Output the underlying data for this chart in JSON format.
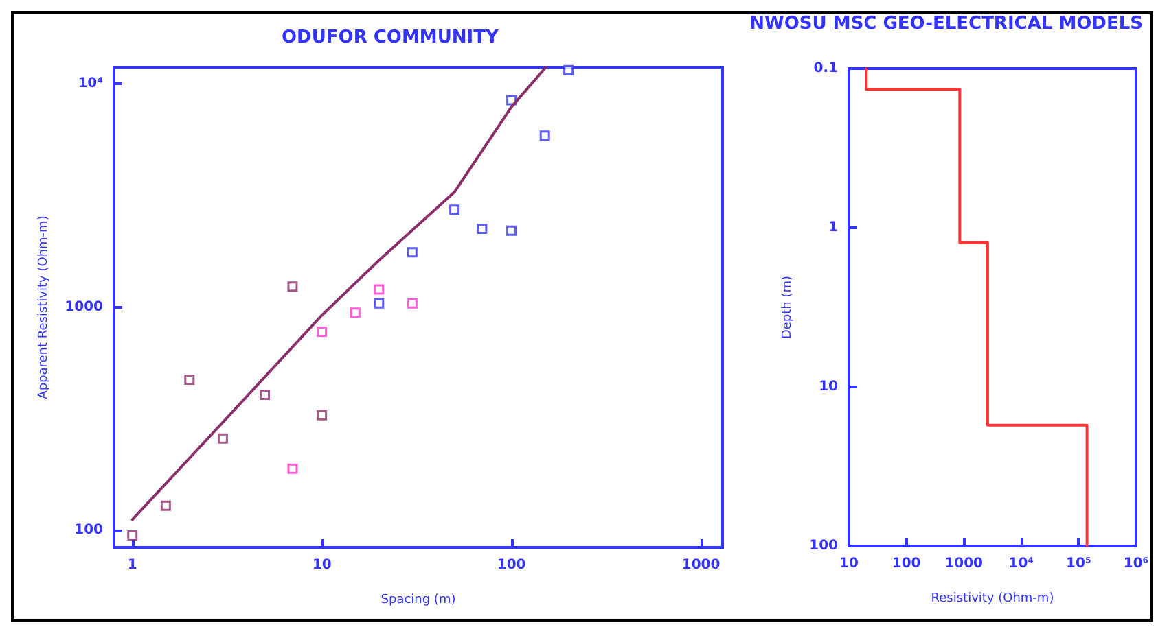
{
  "chart_data": [
    {
      "type": "scatter",
      "title": "ODUFOR COMMUNITY",
      "xlabel": "Spacing (m)",
      "ylabel": "Apparent Resistivity (Ohm-m)",
      "log": "xy",
      "marker": "square",
      "grid": false,
      "xlim": [
        0.8,
        1300
      ],
      "xticks": [
        1,
        10,
        100,
        1000
      ],
      "ylim": [
        84,
        11850
      ],
      "yticks": [
        100,
        1000,
        {
          "value": 10000,
          "label": "10⁴"
        }
      ],
      "series": [
        {
          "color": "#8b2f6b",
          "x": [
            1,
            1.5,
            2,
            3,
            5,
            7,
            10
          ],
          "values": [
            95,
            129,
            473,
            258,
            405,
            1236,
            328
          ]
        },
        {
          "color": "#ff33cc",
          "x": [
            7,
            10,
            15,
            20,
            30
          ],
          "values": [
            189,
            776,
            945,
            1200,
            1040
          ]
        },
        {
          "color": "#3333ff",
          "x": [
            20,
            30,
            50,
            70,
            100,
            100,
            150,
            200
          ],
          "values": [
            1040,
            1760,
            2730,
            2240,
            2200,
            8440,
            5850,
            11500
          ]
        },
        {
          "type": "line",
          "marker": "none",
          "color": "#8b2f6b",
          "x": [
            1,
            3,
            10,
            20,
            50,
            100,
            152
          ],
          "values": [
            112,
            305,
            920,
            1620,
            3270,
            7870,
            11850
          ]
        }
      ]
    },
    {
      "type": "line",
      "title": "NWOSU MSC GEO-ELECTRICAL MODELS",
      "xlabel": "Resistivity (Ohm-m)",
      "ylabel": "Depth (m)",
      "log": "xy",
      "marker": "none",
      "grid": false,
      "xlim": [
        10,
        1000000
      ],
      "xticks": [
        10,
        100,
        1000,
        {
          "value": 10000,
          "label": "10⁴"
        },
        {
          "value": 100000,
          "label": "10⁵"
        },
        {
          "value": 1000000,
          "label": "10⁶"
        }
      ],
      "ylim": [
        100,
        0.1
      ],
      "yticks": [
        0.1,
        1,
        10,
        100
      ],
      "series": [
        {
          "color": "#ff3333",
          "x": [
            20,
            20,
            850,
            850,
            2600,
            2600,
            140000,
            140000
          ],
          "values": [
            0.1,
            0.135,
            0.135,
            1.24,
            1.24,
            17.4,
            17.4,
            100
          ]
        }
      ]
    }
  ]
}
